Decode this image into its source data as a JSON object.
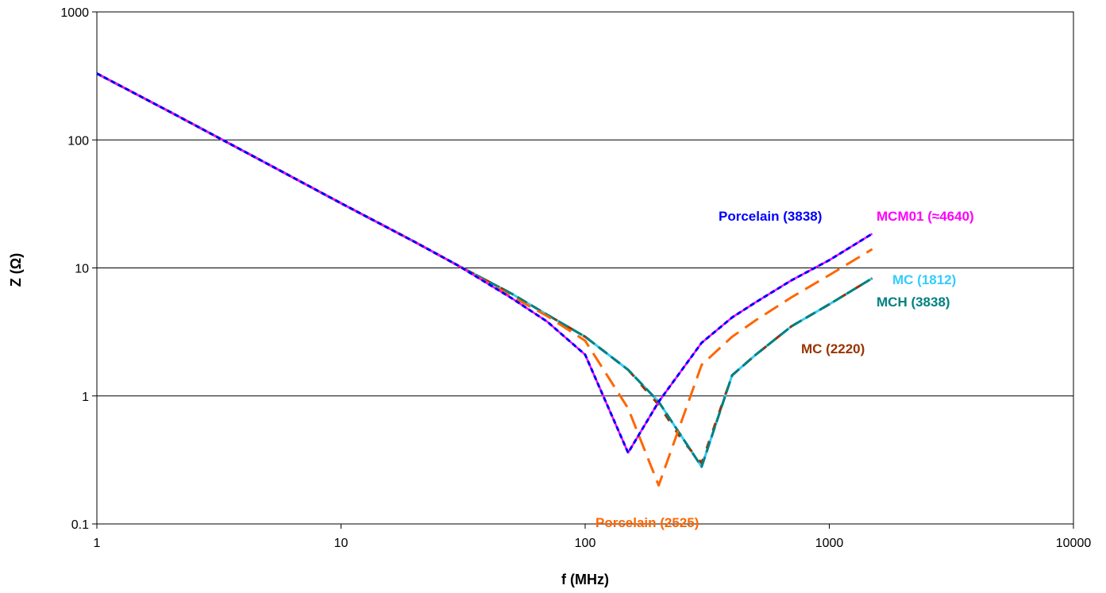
{
  "chart_data": {
    "type": "line",
    "title": "",
    "xlabel": "f (MHz)",
    "ylabel": "Z (Ω)",
    "x_scale": "log",
    "y_scale": "log",
    "xlim": [
      1,
      10000
    ],
    "ylim": [
      0.1,
      1000
    ],
    "x_ticks": [
      "1",
      "10",
      "100",
      "1000",
      "10000"
    ],
    "y_ticks": [
      "0.1",
      "1",
      "10",
      "100",
      "1000"
    ],
    "grid": "horizontal major lines",
    "legend": "inline labels next to curves",
    "series": [
      {
        "name": "Porcelain (3838)",
        "color": "#0000ff",
        "dash": "6,4",
        "x": [
          1,
          2,
          5,
          10,
          20,
          30,
          50,
          70,
          100,
          150,
          200,
          300,
          400,
          500,
          700,
          1000,
          1500
        ],
        "y": [
          330,
          165,
          65,
          32,
          16,
          10.5,
          5.8,
          3.8,
          2.1,
          0.36,
          0.9,
          2.6,
          4.1,
          5.4,
          8,
          11.5,
          18.5
        ]
      },
      {
        "name": "MCM01 (≈4640)",
        "color": "#ff00ff",
        "dash": "",
        "x": [
          1,
          2,
          5,
          10,
          20,
          30,
          50,
          70,
          100,
          150,
          200,
          300,
          400,
          500,
          700,
          1000,
          1500
        ],
        "y": [
          330,
          165,
          65,
          32,
          16,
          10.5,
          5.8,
          3.8,
          2.1,
          0.36,
          0.9,
          2.6,
          4.1,
          5.4,
          8,
          11.5,
          18.5
        ]
      },
      {
        "name": "Porcelain (2525)",
        "color": "#ff6600",
        "dash": "20,10",
        "x": [
          1,
          2,
          5,
          10,
          20,
          30,
          50,
          70,
          100,
          150,
          200,
          300,
          400,
          500,
          700,
          1000,
          1500
        ],
        "y": [
          330,
          165,
          65,
          32,
          16,
          10.5,
          6,
          4.2,
          2.7,
          0.8,
          0.2,
          1.75,
          2.9,
          3.9,
          5.9,
          8.8,
          14
        ]
      },
      {
        "name": "MC (1812)",
        "color": "#33ccff",
        "dash": "",
        "x": [
          1,
          2,
          5,
          10,
          20,
          30,
          50,
          70,
          100,
          150,
          200,
          300,
          400,
          500,
          700,
          1000,
          1500
        ],
        "y": [
          330,
          165,
          65,
          32,
          16,
          10.5,
          6.3,
          4.3,
          2.9,
          1.6,
          0.9,
          0.28,
          1.45,
          2.1,
          3.5,
          5.2,
          8.3
        ]
      },
      {
        "name": "MCH (3838)",
        "color": "#008080",
        "dash": "14,6",
        "x": [
          1,
          2,
          5,
          10,
          20,
          30,
          50,
          70,
          100,
          150,
          200,
          300,
          400,
          500,
          700,
          1000,
          1500
        ],
        "y": [
          330,
          165,
          65,
          32,
          16,
          10.5,
          6.3,
          4.3,
          2.9,
          1.6,
          0.9,
          0.28,
          1.45,
          2.1,
          3.5,
          5.2,
          8.3
        ]
      },
      {
        "name": "MC (2220)",
        "color": "#993300",
        "dash": "10,14",
        "x": [
          1,
          2,
          5,
          10,
          20,
          30,
          50,
          70,
          100,
          150,
          200,
          250,
          300,
          400,
          500,
          700,
          1000,
          1500
        ],
        "y": [
          330,
          165,
          65,
          32,
          16,
          10.5,
          6.3,
          4.3,
          2.9,
          1.6,
          0.85,
          0.45,
          0.3,
          1.45,
          2.1,
          3.5,
          5.2,
          8.3
        ]
      }
    ]
  }
}
